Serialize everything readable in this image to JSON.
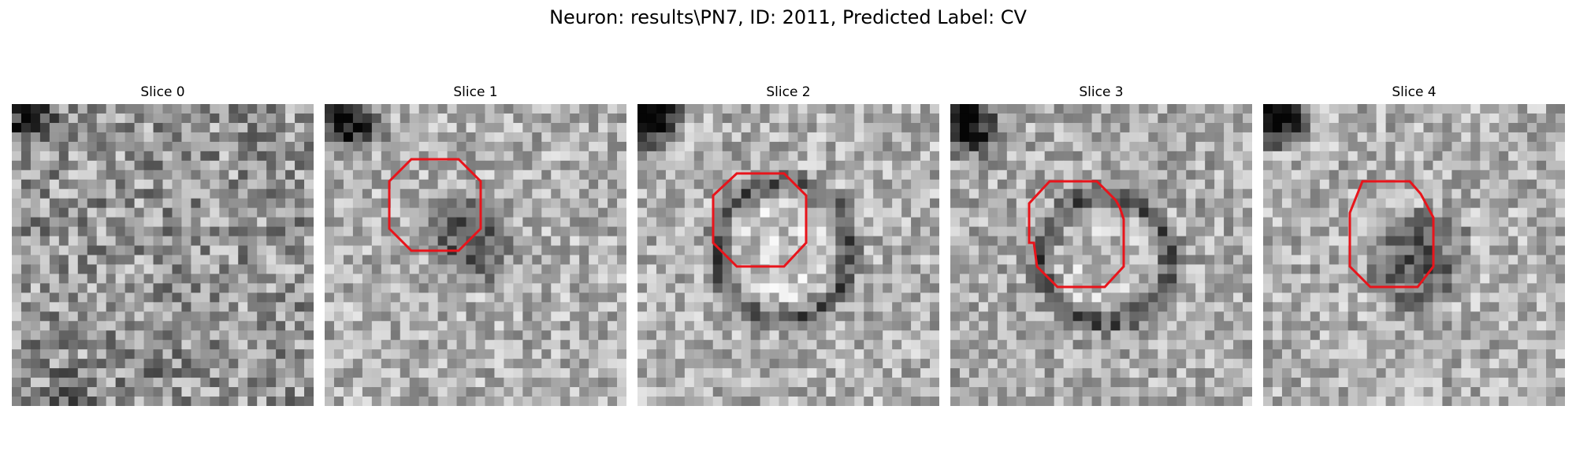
{
  "figure": {
    "title": "Neuron: results\\PN7, ID: 2011, Predicted Label: CV"
  },
  "colors": {
    "outline": "#e8141b",
    "background": "#ffffff"
  },
  "panels": [
    {
      "title": "Slice 0",
      "has_outline": false
    },
    {
      "title": "Slice 1",
      "has_outline": true
    },
    {
      "title": "Slice 2",
      "has_outline": true
    },
    {
      "title": "Slice 3",
      "has_outline": true
    },
    {
      "title": "Slice 4",
      "has_outline": true
    }
  ]
}
